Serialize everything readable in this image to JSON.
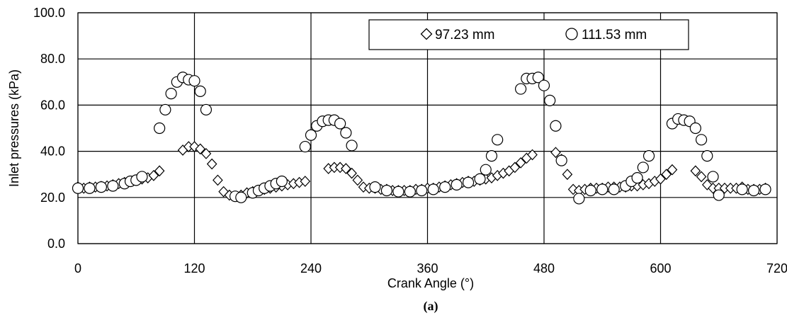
{
  "chart_data": {
    "type": "scatter",
    "xlabel": "Crank Angle (°)",
    "ylabel": "Inlet pressures (kPa)",
    "caption": "(a)",
    "xlim": [
      0,
      720
    ],
    "ylim": [
      0,
      100
    ],
    "x_ticks": [
      "0",
      "120",
      "240",
      "360",
      "480",
      "600",
      "720"
    ],
    "y_ticks": [
      "0.0",
      "20.0",
      "40.0",
      "60.0",
      "80.0",
      "100.0"
    ],
    "grid": "major, both axes",
    "legend_position": "top-right, inside plot",
    "series": [
      {
        "name": "97.23 mm",
        "marker": "diamond",
        "points": [
          [
            0,
            24.5
          ],
          [
            6,
            24
          ],
          [
            12,
            24.5
          ],
          [
            18,
            24.5
          ],
          [
            24,
            24.8
          ],
          [
            30,
            25
          ],
          [
            36,
            25.5
          ],
          [
            42,
            26
          ],
          [
            48,
            26.5
          ],
          [
            54,
            27
          ],
          [
            60,
            27.5
          ],
          [
            66,
            28
          ],
          [
            72,
            28.5
          ],
          [
            78,
            29.5
          ],
          [
            84,
            31.5
          ],
          [
            108,
            40.5
          ],
          [
            114,
            42
          ],
          [
            120,
            42
          ],
          [
            126,
            41
          ],
          [
            132,
            39
          ],
          [
            138,
            34.5
          ],
          [
            144,
            27.5
          ],
          [
            150,
            22.5
          ],
          [
            156,
            21
          ],
          [
            162,
            20.5
          ],
          [
            168,
            21
          ],
          [
            174,
            22
          ],
          [
            180,
            22.5
          ],
          [
            186,
            23
          ],
          [
            192,
            23.5
          ],
          [
            198,
            24
          ],
          [
            204,
            24.5
          ],
          [
            210,
            25
          ],
          [
            216,
            25.5
          ],
          [
            222,
            26
          ],
          [
            228,
            26.5
          ],
          [
            234,
            27
          ],
          [
            258,
            32.5
          ],
          [
            264,
            33
          ],
          [
            270,
            33
          ],
          [
            276,
            32.5
          ],
          [
            282,
            30.5
          ],
          [
            288,
            27.5
          ],
          [
            294,
            24.5
          ],
          [
            300,
            24
          ],
          [
            306,
            24
          ],
          [
            312,
            23.5
          ],
          [
            318,
            23.5
          ],
          [
            324,
            23
          ],
          [
            330,
            23
          ],
          [
            336,
            23
          ],
          [
            342,
            23
          ],
          [
            348,
            23.5
          ],
          [
            354,
            23.5
          ],
          [
            360,
            24
          ],
          [
            366,
            24
          ],
          [
            372,
            24.5
          ],
          [
            378,
            25
          ],
          [
            384,
            25.5
          ],
          [
            390,
            26
          ],
          [
            396,
            26.5
          ],
          [
            402,
            27
          ],
          [
            408,
            27
          ],
          [
            414,
            27.5
          ],
          [
            420,
            28
          ],
          [
            426,
            28.5
          ],
          [
            432,
            29.5
          ],
          [
            438,
            30.5
          ],
          [
            444,
            31.5
          ],
          [
            450,
            33
          ],
          [
            456,
            35
          ],
          [
            462,
            37
          ],
          [
            468,
            38.5
          ],
          [
            492,
            39.5
          ],
          [
            498,
            36.5
          ],
          [
            504,
            30
          ],
          [
            510,
            23.5
          ],
          [
            516,
            23
          ],
          [
            522,
            23.5
          ],
          [
            528,
            24
          ],
          [
            534,
            24
          ],
          [
            540,
            24
          ],
          [
            546,
            24.5
          ],
          [
            552,
            24.5
          ],
          [
            558,
            24.5
          ],
          [
            564,
            24.5
          ],
          [
            570,
            25
          ],
          [
            576,
            25
          ],
          [
            582,
            25.5
          ],
          [
            588,
            26
          ],
          [
            594,
            27
          ],
          [
            600,
            28
          ],
          [
            606,
            30
          ],
          [
            612,
            32
          ],
          [
            636,
            31.5
          ],
          [
            642,
            29
          ],
          [
            648,
            25.5
          ],
          [
            654,
            24
          ],
          [
            660,
            24
          ],
          [
            666,
            24
          ],
          [
            672,
            24
          ],
          [
            678,
            24
          ],
          [
            684,
            24.5
          ],
          [
            690,
            23.5
          ],
          [
            696,
            23.5
          ],
          [
            702,
            23.5
          ],
          [
            708,
            24
          ]
        ]
      },
      {
        "name": "111.53 mm",
        "marker": "circle",
        "points": [
          [
            0,
            24
          ],
          [
            12,
            24
          ],
          [
            24,
            24.5
          ],
          [
            36,
            25
          ],
          [
            48,
            26
          ],
          [
            54,
            27
          ],
          [
            60,
            27.5
          ],
          [
            66,
            29
          ],
          [
            84,
            50
          ],
          [
            90,
            58
          ],
          [
            96,
            65
          ],
          [
            102,
            70
          ],
          [
            108,
            72
          ],
          [
            114,
            71
          ],
          [
            120,
            70.5
          ],
          [
            126,
            66
          ],
          [
            132,
            58
          ],
          [
            162,
            20.5
          ],
          [
            168,
            20
          ],
          [
            180,
            22
          ],
          [
            186,
            23
          ],
          [
            192,
            24
          ],
          [
            198,
            25
          ],
          [
            204,
            26
          ],
          [
            210,
            27
          ],
          [
            234,
            42
          ],
          [
            240,
            47
          ],
          [
            246,
            51
          ],
          [
            252,
            53
          ],
          [
            258,
            53.5
          ],
          [
            264,
            53.5
          ],
          [
            270,
            52
          ],
          [
            276,
            48
          ],
          [
            282,
            42.5
          ],
          [
            306,
            24.5
          ],
          [
            318,
            23
          ],
          [
            330,
            22.5
          ],
          [
            342,
            22.5
          ],
          [
            354,
            23
          ],
          [
            366,
            23.5
          ],
          [
            378,
            24.5
          ],
          [
            390,
            25.5
          ],
          [
            402,
            26.5
          ],
          [
            414,
            28
          ],
          [
            420,
            32
          ],
          [
            426,
            38
          ],
          [
            432,
            45
          ],
          [
            456,
            67
          ],
          [
            462,
            71.5
          ],
          [
            468,
            71.5
          ],
          [
            474,
            72
          ],
          [
            480,
            68.5
          ],
          [
            486,
            62
          ],
          [
            492,
            51
          ],
          [
            498,
            36
          ],
          [
            516,
            19.5
          ],
          [
            528,
            23
          ],
          [
            540,
            23.5
          ],
          [
            552,
            23.5
          ],
          [
            564,
            25
          ],
          [
            570,
            27
          ],
          [
            576,
            28.5
          ],
          [
            582,
            33
          ],
          [
            588,
            38
          ],
          [
            612,
            52
          ],
          [
            618,
            54
          ],
          [
            624,
            53.5
          ],
          [
            630,
            53
          ],
          [
            636,
            50
          ],
          [
            642,
            45
          ],
          [
            648,
            38
          ],
          [
            654,
            29
          ],
          [
            660,
            21
          ],
          [
            684,
            23.5
          ],
          [
            696,
            23
          ],
          [
            708,
            23.5
          ]
        ]
      }
    ]
  }
}
